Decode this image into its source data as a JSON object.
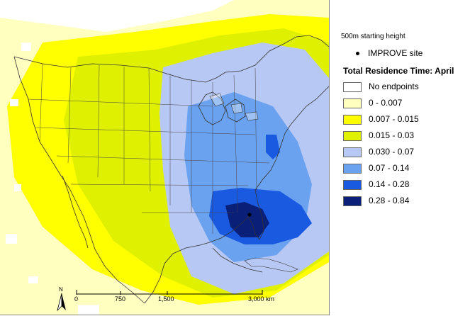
{
  "legend": {
    "starting_height": "500m starting height",
    "site_label": "IMPROVE site",
    "title": "Total Residence Time: April",
    "classes": [
      {
        "label": "No endpoints",
        "color": "#ffffff"
      },
      {
        "label": "0 - 0.007",
        "color": "#ffffc0"
      },
      {
        "label": "0.007 - 0.015",
        "color": "#ffff00"
      },
      {
        "label": "0.015 - 0.03",
        "color": "#dff000"
      },
      {
        "label": "0.030 - 0.07",
        "color": "#b8c8f4"
      },
      {
        "label": "0.07 - 0.14",
        "color": "#6aa2ef"
      },
      {
        "label": "0.14 - 0.28",
        "color": "#1a5ae0"
      },
      {
        "label": "0.28 - 0.84",
        "color": "#0a1f78"
      }
    ]
  },
  "scale_bar": {
    "labels": [
      "0",
      "750",
      "1,500",
      "3,000 km"
    ]
  },
  "north_arrow": {
    "label": "N"
  }
}
